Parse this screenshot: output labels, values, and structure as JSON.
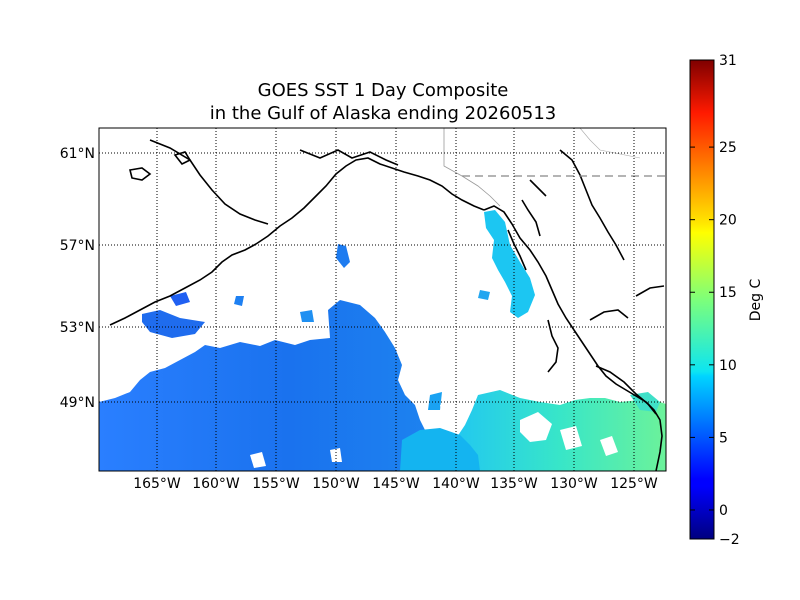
{
  "title": {
    "line1": "GOES SST 1 Day Composite",
    "line2": "in the Gulf of Alaska ending 20260513"
  },
  "map": {
    "lat_labels": [
      "61°N",
      "57°N",
      "53°N",
      "49°N"
    ],
    "lon_labels": [
      "165°W",
      "160°W",
      "155°W",
      "150°W",
      "145°W",
      "140°W",
      "135°W",
      "130°W",
      "125°W"
    ],
    "grid": "dotted",
    "land_color": "#ffffff",
    "coast_color": "#000000"
  },
  "colorbar": {
    "label": "Deg C",
    "colormap": "jet",
    "vmin": -2,
    "vmax": 31,
    "ticks": [
      -2,
      0,
      5,
      10,
      15,
      20,
      25,
      31
    ],
    "tick_labels": [
      "−2",
      "0",
      "5",
      "10",
      "15",
      "20",
      "25",
      "31"
    ]
  }
}
